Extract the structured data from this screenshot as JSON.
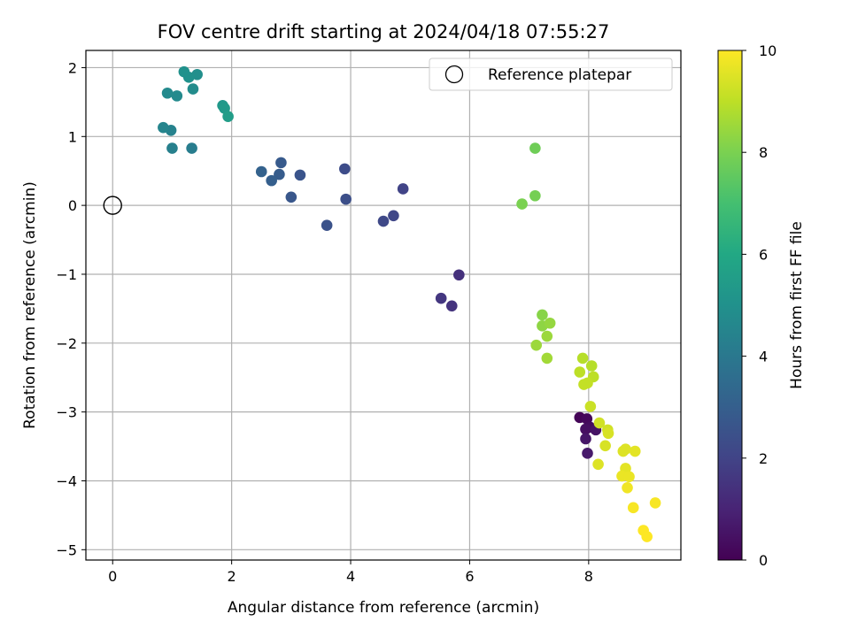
{
  "chart_data": {
    "type": "scatter",
    "title": "FOV centre drift starting at 2024/04/18 07:55:27",
    "xlabel": "Angular distance from reference (arcmin)",
    "ylabel": "Rotation from reference (arcmin)",
    "xlim": [
      -0.45,
      9.55
    ],
    "ylim": [
      -5.15,
      2.25
    ],
    "xticks": [
      0,
      2,
      4,
      6,
      8
    ],
    "yticks": [
      2,
      1,
      0,
      -1,
      -2,
      -3,
      -4,
      -5
    ],
    "grid": true,
    "legend": {
      "placement": "top-right",
      "entries": [
        "Reference platepar"
      ]
    },
    "reference": {
      "x": 0,
      "y": 0
    },
    "colorbar": {
      "label": "Hours from first FF file",
      "range": [
        0,
        10
      ],
      "ticks": [
        0,
        2,
        4,
        6,
        8,
        10
      ],
      "colormap": "viridis"
    },
    "points": [
      {
        "x": 7.85,
        "y": -3.08,
        "t": 0.1
      },
      {
        "x": 7.97,
        "y": -3.1,
        "t": 0.2
      },
      {
        "x": 8.02,
        "y": -3.22,
        "t": 0.3
      },
      {
        "x": 7.95,
        "y": -3.25,
        "t": 0.4
      },
      {
        "x": 8.12,
        "y": -3.26,
        "t": 0.5
      },
      {
        "x": 7.95,
        "y": -3.39,
        "t": 0.6
      },
      {
        "x": 7.98,
        "y": -3.6,
        "t": 0.7
      },
      {
        "x": 5.82,
        "y": -1.01,
        "t": 1.4
      },
      {
        "x": 5.7,
        "y": -1.46,
        "t": 1.5
      },
      {
        "x": 5.52,
        "y": -1.35,
        "t": 1.6
      },
      {
        "x": 4.88,
        "y": 0.24,
        "t": 2.0
      },
      {
        "x": 4.72,
        "y": -0.15,
        "t": 2.1
      },
      {
        "x": 4.55,
        "y": -0.23,
        "t": 2.2
      },
      {
        "x": 3.9,
        "y": 0.53,
        "t": 2.3
      },
      {
        "x": 3.92,
        "y": 0.09,
        "t": 2.4
      },
      {
        "x": 3.6,
        "y": -0.29,
        "t": 2.5
      },
      {
        "x": 3.15,
        "y": 0.44,
        "t": 2.6
      },
      {
        "x": 3.0,
        "y": 0.12,
        "t": 2.7
      },
      {
        "x": 2.83,
        "y": 0.62,
        "t": 2.8
      },
      {
        "x": 2.8,
        "y": 0.45,
        "t": 2.9
      },
      {
        "x": 2.67,
        "y": 0.36,
        "t": 3.0
      },
      {
        "x": 2.5,
        "y": 0.49,
        "t": 3.1
      },
      {
        "x": 1.33,
        "y": 0.83,
        "t": 4.2
      },
      {
        "x": 1.0,
        "y": 0.83,
        "t": 4.3
      },
      {
        "x": 0.98,
        "y": 1.09,
        "t": 4.4
      },
      {
        "x": 0.85,
        "y": 1.13,
        "t": 4.5
      },
      {
        "x": 1.08,
        "y": 1.59,
        "t": 4.7
      },
      {
        "x": 0.92,
        "y": 1.63,
        "t": 4.7
      },
      {
        "x": 1.35,
        "y": 1.69,
        "t": 4.8
      },
      {
        "x": 1.42,
        "y": 1.9,
        "t": 4.9
      },
      {
        "x": 1.28,
        "y": 1.86,
        "t": 5.0
      },
      {
        "x": 1.2,
        "y": 1.94,
        "t": 5.0
      },
      {
        "x": 1.85,
        "y": 1.45,
        "t": 5.3
      },
      {
        "x": 1.88,
        "y": 1.41,
        "t": 5.4
      },
      {
        "x": 1.94,
        "y": 1.29,
        "t": 5.5
      },
      {
        "x": 7.1,
        "y": 0.83,
        "t": 7.8
      },
      {
        "x": 7.1,
        "y": 0.14,
        "t": 7.9
      },
      {
        "x": 6.88,
        "y": 0.02,
        "t": 8.0
      },
      {
        "x": 7.22,
        "y": -1.59,
        "t": 8.2
      },
      {
        "x": 7.22,
        "y": -1.75,
        "t": 8.3
      },
      {
        "x": 7.35,
        "y": -1.71,
        "t": 8.4
      },
      {
        "x": 7.3,
        "y": -1.9,
        "t": 8.5
      },
      {
        "x": 7.12,
        "y": -2.03,
        "t": 8.5
      },
      {
        "x": 7.3,
        "y": -2.22,
        "t": 8.6
      },
      {
        "x": 7.9,
        "y": -2.22,
        "t": 8.9
      },
      {
        "x": 8.05,
        "y": -2.33,
        "t": 8.9
      },
      {
        "x": 7.85,
        "y": -2.42,
        "t": 9.0
      },
      {
        "x": 8.08,
        "y": -2.49,
        "t": 9.0
      },
      {
        "x": 7.92,
        "y": -2.6,
        "t": 9.1
      },
      {
        "x": 7.98,
        "y": -2.58,
        "t": 9.1
      },
      {
        "x": 8.03,
        "y": -2.92,
        "t": 9.2
      },
      {
        "x": 8.18,
        "y": -3.16,
        "t": 9.3
      },
      {
        "x": 8.32,
        "y": -3.26,
        "t": 9.3
      },
      {
        "x": 8.33,
        "y": -3.31,
        "t": 9.4
      },
      {
        "x": 8.28,
        "y": -3.49,
        "t": 9.4
      },
      {
        "x": 8.16,
        "y": -3.76,
        "t": 9.5
      },
      {
        "x": 8.62,
        "y": -3.54,
        "t": 9.5
      },
      {
        "x": 8.58,
        "y": -3.57,
        "t": 9.5
      },
      {
        "x": 8.78,
        "y": -3.57,
        "t": 9.6
      },
      {
        "x": 8.62,
        "y": -3.82,
        "t": 9.6
      },
      {
        "x": 8.56,
        "y": -3.93,
        "t": 9.7
      },
      {
        "x": 8.68,
        "y": -3.94,
        "t": 9.7
      },
      {
        "x": 8.65,
        "y": -4.1,
        "t": 9.8
      },
      {
        "x": 8.75,
        "y": -4.39,
        "t": 9.9
      },
      {
        "x": 9.12,
        "y": -4.32,
        "t": 9.9
      },
      {
        "x": 8.92,
        "y": -4.72,
        "t": 10.0
      },
      {
        "x": 8.98,
        "y": -4.81,
        "t": 10.0
      }
    ]
  }
}
